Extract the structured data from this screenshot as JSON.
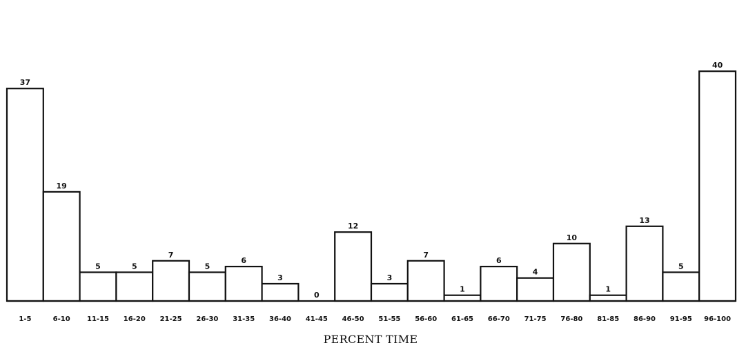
{
  "chart_data": {
    "type": "bar",
    "title": "",
    "xlabel": "PERCENT TIME",
    "ylabel": "",
    "ylim": [
      0,
      50
    ],
    "grid": false,
    "categories": [
      "1-5",
      "6-10",
      "11-15",
      "16-20",
      "21-25",
      "26-30",
      "31-35",
      "36-40",
      "41-45",
      "46-50",
      "51-55",
      "56-60",
      "61-65",
      "66-70",
      "71-75",
      "76-80",
      "81-85",
      "86-90",
      "91-95",
      "96-100"
    ],
    "tick_labels": [
      "1-5",
      "6-10",
      "11-15",
      "16-20",
      "21-25",
      "26-30",
      "31-35",
      "36-40",
      "41-45",
      "46-50",
      "51-55",
      "56-60",
      "61-65",
      "66-70",
      "71-75",
      "76-80",
      "81-85",
      "86-90",
      "91-95",
      "96-100"
    ],
    "values": [
      37,
      19,
      5,
      5,
      7,
      5,
      6,
      3,
      0,
      12,
      3,
      7,
      1,
      6,
      4,
      10,
      1,
      13,
      5,
      40
    ],
    "value_labels": [
      "37",
      "19",
      "5",
      "5",
      "7",
      "5",
      "6",
      "3",
      "0",
      "12",
      "3",
      "7",
      "1",
      "6",
      "4",
      "10",
      "1",
      "13",
      "5",
      "40"
    ]
  }
}
